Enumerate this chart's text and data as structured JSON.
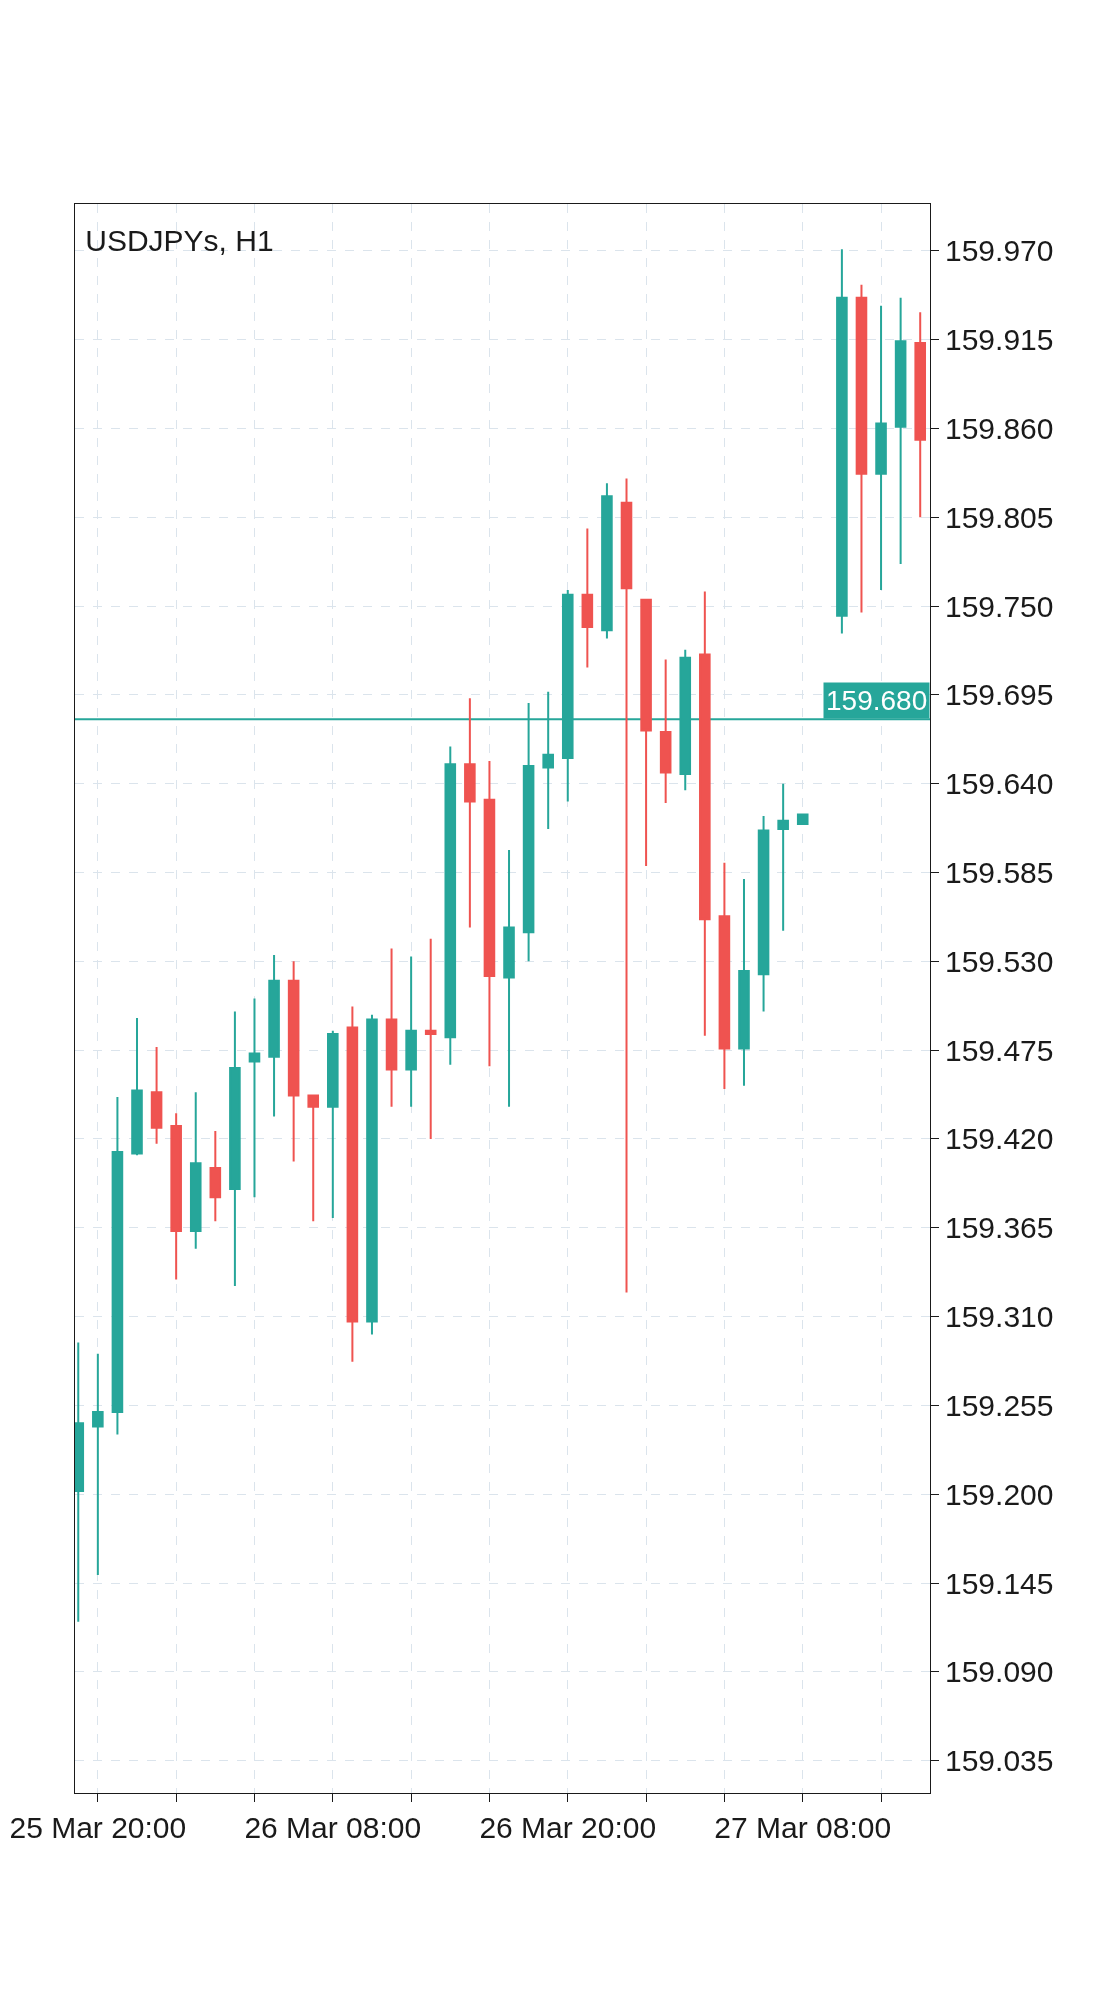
{
  "chart_data": {
    "type": "candlestick",
    "title": "USDJPYs, H1",
    "x": [
      "--03-25T19:00",
      "--03-25T20:00",
      "--03-25T21:00",
      "--03-25T22:00",
      "--03-25T23:00",
      "--03-26T00:00",
      "--03-26T01:00",
      "--03-26T02:00",
      "--03-26T03:00",
      "--03-26T04:00",
      "--03-26T05:00",
      "--03-26T06:00",
      "--03-26T07:00",
      "--03-26T08:00",
      "--03-26T09:00",
      "--03-26T10:00",
      "--03-26T11:00",
      "--03-26T12:00",
      "--03-26T13:00",
      "--03-26T14:00",
      "--03-26T15:00",
      "--03-26T16:00",
      "--03-26T17:00",
      "--03-26T18:00",
      "--03-26T19:00",
      "--03-26T20:00",
      "--03-26T21:00",
      "--03-26T22:00",
      "--03-26T23:00",
      "--03-27T00:00",
      "--03-27T01:00",
      "--03-27T02:00",
      "--03-27T03:00",
      "--03-27T04:00",
      "--03-27T05:00",
      "--03-27T06:00",
      "--03-27T07:00",
      "--03-27T08:00",
      "--03-27T10:00",
      "--03-27T11:00",
      "--03-27T12:00",
      "--03-27T13:00",
      "--03-27T14:00"
    ],
    "ohlc": [
      [
        159.202,
        159.294,
        159.121,
        159.244
      ],
      [
        159.242,
        159.287,
        159.15,
        159.251
      ],
      [
        159.251,
        159.446,
        159.237,
        159.412
      ],
      [
        159.411,
        159.495,
        159.41,
        159.45
      ],
      [
        159.449,
        159.477,
        159.417,
        159.427
      ],
      [
        159.428,
        159.436,
        159.333,
        159.363
      ],
      [
        159.363,
        159.449,
        159.352,
        159.405
      ],
      [
        159.402,
        159.425,
        159.369,
        159.384
      ],
      [
        159.389,
        159.499,
        159.329,
        159.464
      ],
      [
        159.468,
        159.507,
        159.384,
        159.473
      ],
      [
        159.471,
        159.534,
        159.434,
        159.518
      ],
      [
        159.518,
        159.53,
        159.406,
        159.447
      ],
      [
        159.447,
        159.447,
        159.369,
        159.44
      ],
      [
        159.44,
        159.487,
        159.371,
        159.485
      ],
      [
        159.489,
        159.502,
        159.282,
        159.307
      ],
      [
        159.307,
        159.497,
        159.299,
        159.494
      ],
      [
        159.494,
        159.538,
        159.44,
        159.463
      ],
      [
        159.463,
        159.533,
        159.44,
        159.487
      ],
      [
        159.487,
        159.544,
        159.42,
        159.485
      ],
      [
        159.483,
        159.663,
        159.466,
        159.652
      ],
      [
        159.652,
        159.693,
        159.551,
        159.629
      ],
      [
        159.63,
        159.654,
        159.465,
        159.521
      ],
      [
        159.52,
        159.599,
        159.44,
        159.551
      ],
      [
        159.548,
        159.69,
        159.53,
        159.651
      ],
      [
        159.65,
        159.697,
        159.612,
        159.658
      ],
      [
        159.656,
        159.76,
        159.629,
        159.757
      ],
      [
        159.757,
        159.798,
        159.712,
        159.737
      ],
      [
        159.735,
        159.826,
        159.73,
        159.818
      ],
      [
        159.814,
        159.829,
        159.325,
        159.761
      ],
      [
        159.754,
        159.754,
        159.589,
        159.673
      ],
      [
        159.672,
        159.717,
        159.628,
        159.647
      ],
      [
        159.646,
        159.723,
        159.636,
        159.718
      ],
      [
        159.72,
        159.759,
        159.484,
        159.556
      ],
      [
        159.558,
        159.591,
        159.451,
        159.476
      ],
      [
        159.476,
        159.581,
        159.453,
        159.524
      ],
      [
        159.522,
        159.62,
        159.499,
        159.611
      ],
      [
        159.612,
        159.64,
        159.549,
        159.617
      ],
      [
        159.615,
        159.621,
        159.615,
        159.621
      ],
      [
        159.744,
        159.971,
        159.733,
        159.941
      ],
      [
        159.941,
        159.949,
        159.746,
        159.832
      ],
      [
        159.832,
        159.936,
        159.76,
        159.863
      ],
      [
        159.861,
        159.941,
        159.776,
        159.914
      ],
      [
        159.913,
        159.932,
        159.805,
        159.853
      ]
    ],
    "colors": [
      "#26a69a",
      "#26a69a",
      "#26a69a",
      "#26a69a",
      "#ef5350",
      "#ef5350",
      "#26a69a",
      "#ef5350",
      "#26a69a",
      "#26a69a",
      "#26a69a",
      "#ef5350",
      "#ef5350",
      "#26a69a",
      "#ef5350",
      "#26a69a",
      "#ef5350",
      "#26a69a",
      "#ef5350",
      "#26a69a",
      "#ef5350",
      "#ef5350",
      "#26a69a",
      "#26a69a",
      "#26a69a",
      "#26a69a",
      "#ef5350",
      "#26a69a",
      "#ef5350",
      "#ef5350",
      "#ef5350",
      "#26a69a",
      "#ef5350",
      "#ef5350",
      "#26a69a",
      "#26a69a",
      "#26a69a",
      "#26a69a",
      "#26a69a",
      "#ef5350",
      "#26a69a",
      "#26a69a",
      "#ef5350"
    ],
    "xlim": [
      "--03-25T18:50",
      "--03-27T14:30"
    ],
    "xticks": [
      {
        "value": "--03-25T20:00",
        "label": "25 Mar 20:00"
      },
      {
        "value": "--03-26T00:00",
        "label": null
      },
      {
        "value": "--03-26T04:00",
        "label": null
      },
      {
        "value": "--03-26T08:00",
        "label": "26 Mar 08:00"
      },
      {
        "value": "--03-26T12:00",
        "label": null
      },
      {
        "value": "--03-26T16:00",
        "label": null
      },
      {
        "value": "--03-26T20:00",
        "label": "26 Mar 20:00"
      },
      {
        "value": "--03-27T00:00",
        "label": null
      },
      {
        "value": "--03-27T04:00",
        "label": null
      },
      {
        "value": "--03-27T08:00",
        "label": "27 Mar 08:00"
      },
      {
        "value": "--03-27T12:00",
        "label": null
      }
    ],
    "ylim": [
      159.015,
      159.999
    ],
    "yticks": [
      159.035,
      {
        "value": 159.09,
        "label": "159.090"
      },
      159.145,
      {
        "value": 159.2,
        "label": "159.200"
      },
      159.255,
      {
        "value": 159.31,
        "label": "159.310"
      },
      159.365,
      {
        "value": 159.42,
        "label": "159.420"
      },
      159.475,
      {
        "value": 159.53,
        "label": "159.530"
      },
      159.585,
      {
        "value": 159.64,
        "label": "159.640"
      },
      159.695,
      {
        "value": 159.75,
        "label": "159.750"
      },
      159.805,
      {
        "value": 159.86,
        "label": "159.860"
      },
      159.915,
      {
        "value": 159.97,
        "label": "159.970"
      }
    ],
    "ref_lines": [
      {
        "axis": "y",
        "value": 159.68,
        "label": "159.680",
        "color": "#26a69a"
      }
    ],
    "grid": true
  }
}
